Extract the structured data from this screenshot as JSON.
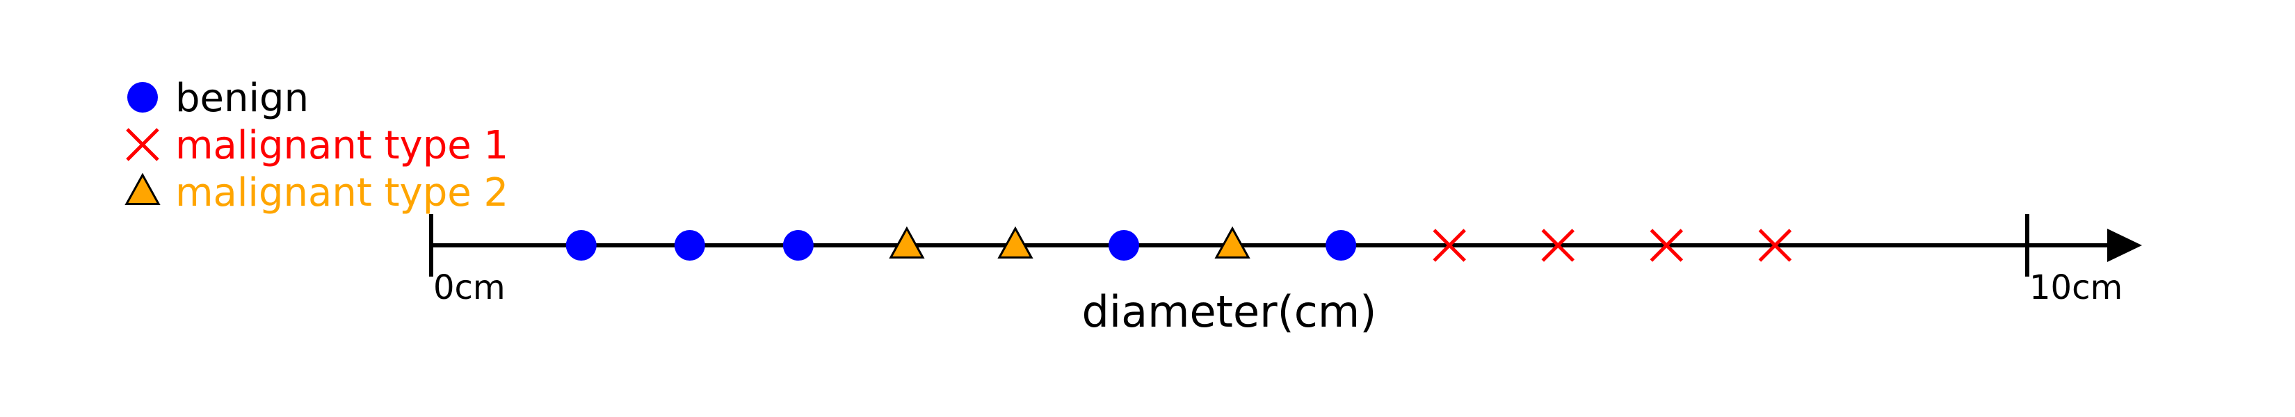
{
  "chart_data": {
    "type": "scatter",
    "title": "",
    "xlabel": "diameter(cm)",
    "x_range": [
      0,
      10
    ],
    "tick_labels": [
      "0cm",
      "10cm"
    ],
    "legend_position": "top-left",
    "series": [
      {
        "name": "benign",
        "marker": "circle",
        "color": "#0000ff",
        "x": [
          0.94,
          1.62,
          2.3,
          4.34,
          5.7
        ]
      },
      {
        "name": "malignant type 1",
        "marker": "x",
        "color": "#ff0000",
        "x": [
          6.38,
          7.06,
          7.74,
          8.42
        ]
      },
      {
        "name": "malignant type 2",
        "marker": "triangle",
        "color": "#ffa500",
        "x": [
          2.98,
          3.66,
          5.02
        ]
      }
    ]
  }
}
